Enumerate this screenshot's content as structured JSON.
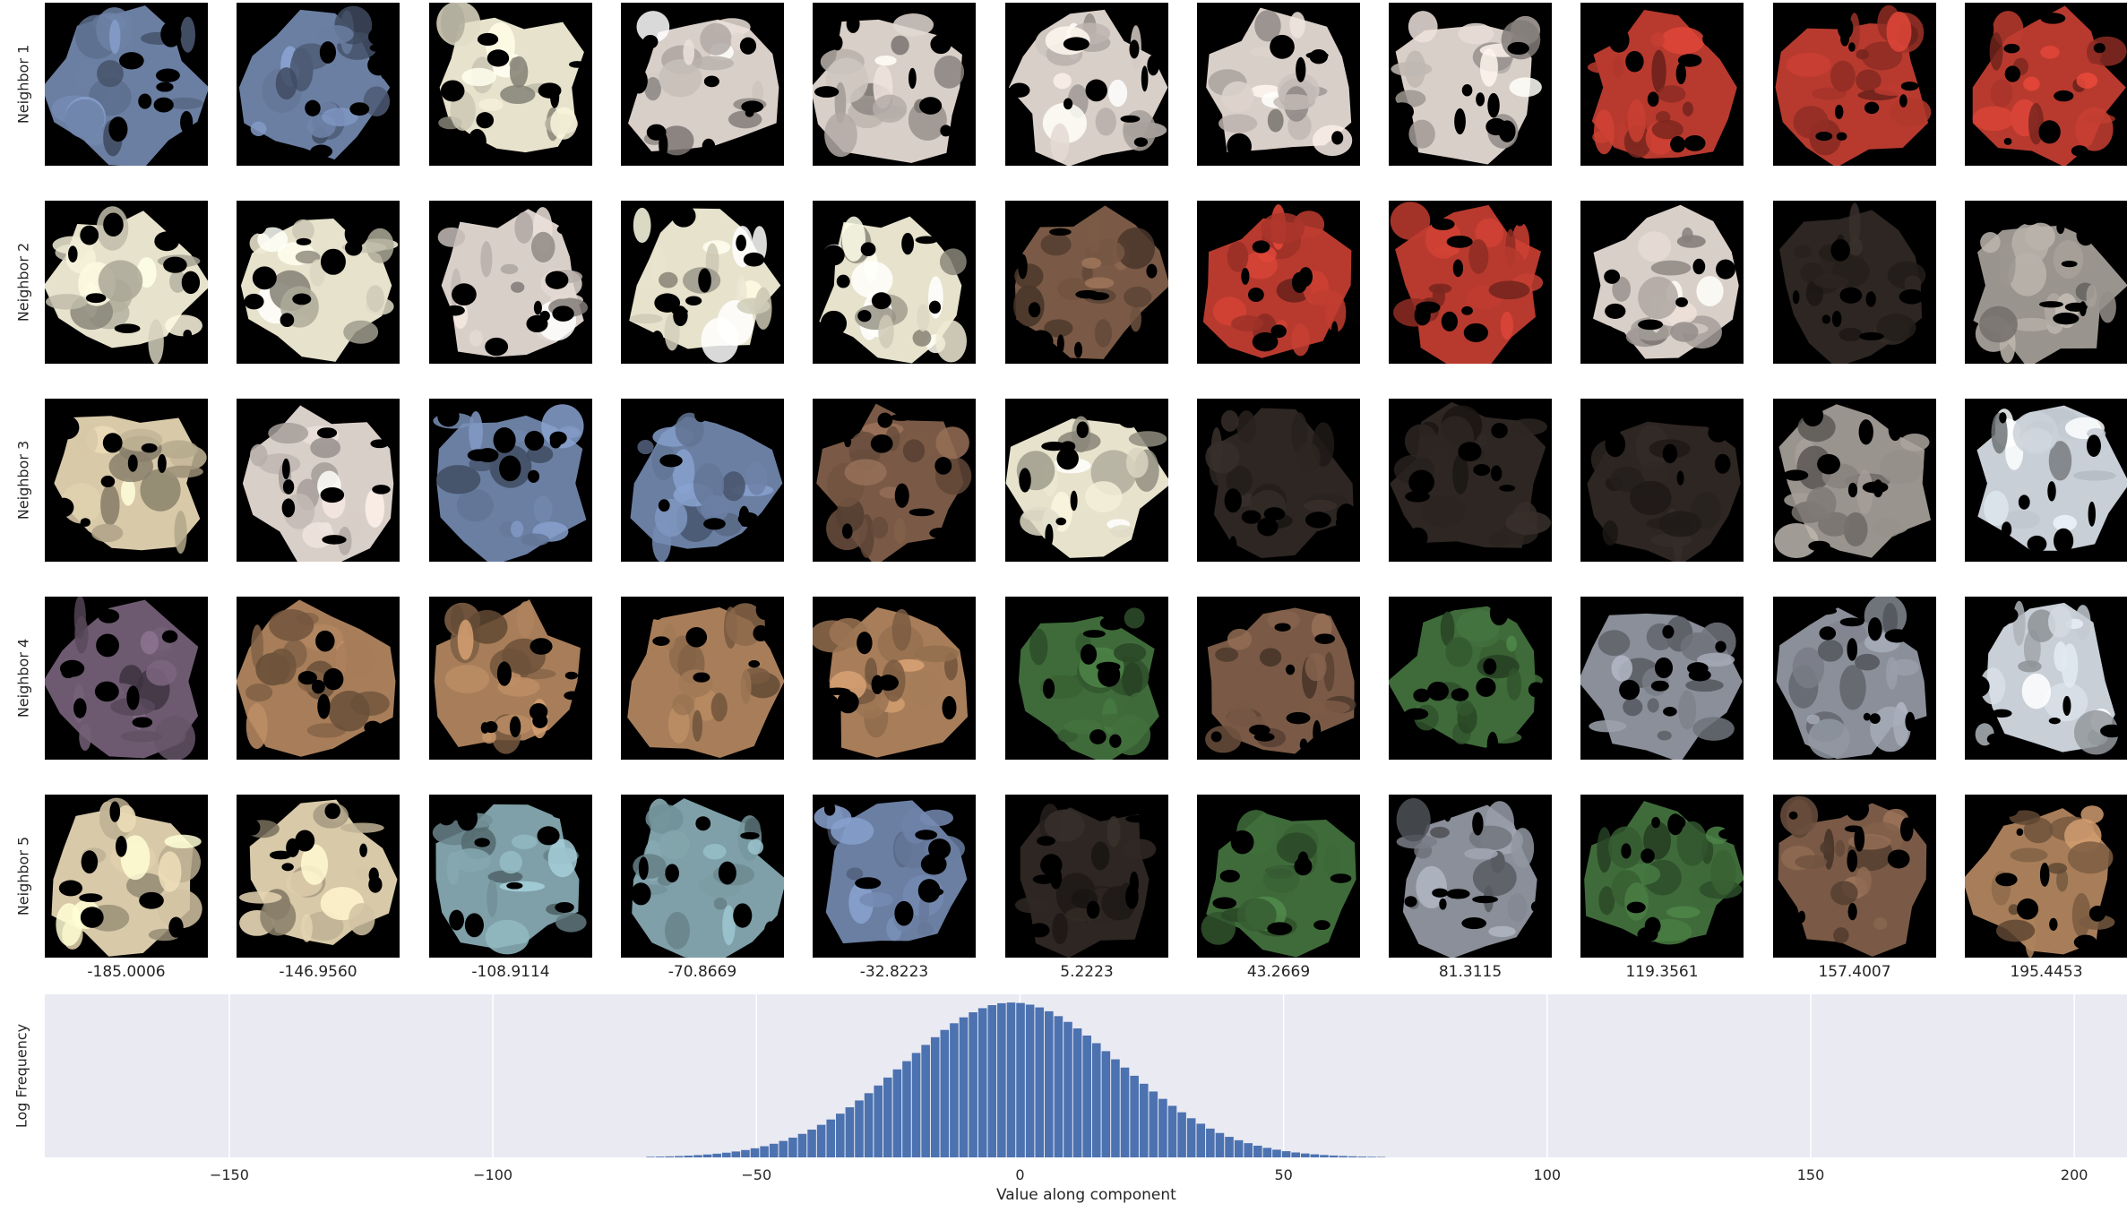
{
  "chart_data": {
    "type": "bar",
    "title": "",
    "xlabel": "Value along component",
    "ylabel": "Log Frequency",
    "xlim": [
      -185.0006,
      210
    ],
    "x_ticks": [
      -150,
      -100,
      -50,
      0,
      50,
      100,
      150,
      200
    ],
    "x_tick_labels": [
      "−150",
      "−100",
      "−50",
      "0",
      "50",
      "100",
      "150",
      "200"
    ],
    "grid": true,
    "bins": {
      "start": -80,
      "end": 82,
      "width": 1.8
    },
    "distribution": {
      "center": -1.5,
      "sigma": 20.5,
      "peak": 0.95
    },
    "grid_rows": [
      "Neighbor 1",
      "Neighbor 2",
      "Neighbor 3",
      "Neighbor 4",
      "Neighbor 5"
    ],
    "grid_column_values": [
      "-185.0006",
      "-146.9560",
      "-108.9114",
      "-70.8669",
      "-32.8223",
      "5.2223",
      "43.2669",
      "81.3115",
      "119.3561",
      "157.4007",
      "195.4453"
    ],
    "palette": {
      "A": "#6b7fa3",
      "B": "#e6e2cc",
      "C": "#d9cfc9",
      "D": "#b83a2e",
      "E": "#8a8f99",
      "F": "#7a5a46",
      "G": "#d8c9a8",
      "H": "#3f6b3a",
      "I": "#2d2622",
      "J": "#9a948e",
      "K": "#c8cfd6",
      "L": "#a87e5a",
      "M": "#7fa0a8",
      "N": "#6d5a70"
    },
    "grid_images": [
      [
        "A",
        "A",
        "B",
        "C",
        "C",
        "C",
        "C",
        "C",
        "D",
        "D",
        "D"
      ],
      [
        "B",
        "B",
        "C",
        "B",
        "B",
        "F",
        "D",
        "D",
        "C",
        "I",
        "J"
      ],
      [
        "G",
        "C",
        "A",
        "A",
        "F",
        "B",
        "I",
        "I",
        "I",
        "J",
        "K"
      ],
      [
        "N",
        "L",
        "L",
        "L",
        "L",
        "H",
        "F",
        "H",
        "E",
        "E",
        "K"
      ],
      [
        "G",
        "G",
        "M",
        "M",
        "A",
        "I",
        "H",
        "E",
        "H",
        "F",
        "L"
      ]
    ]
  }
}
